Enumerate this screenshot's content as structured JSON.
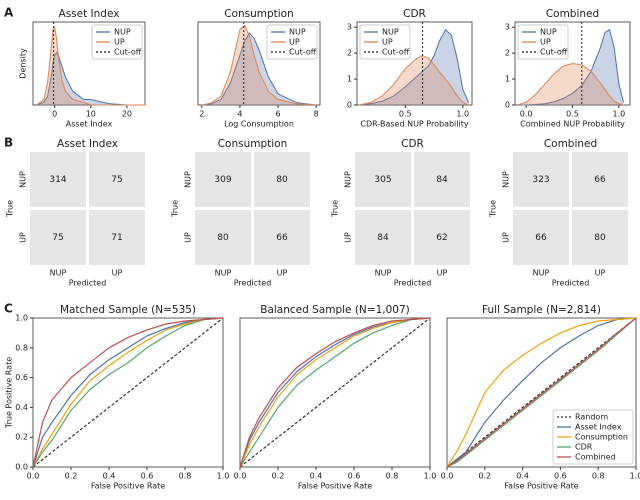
{
  "chart_data": [
    {
      "type": "density",
      "panel": "A",
      "title": "Asset Index",
      "xlabel": "Asset Index",
      "ylabel": "Density",
      "x": [
        -5,
        -3,
        -2,
        -1,
        -0.5,
        0,
        0.5,
        1,
        2,
        3,
        5,
        8,
        10,
        15,
        20,
        25
      ],
      "series": [
        {
          "name": "NUP",
          "color": "#4c72b0",
          "values": [
            0,
            0.01,
            0.03,
            0.1,
            0.15,
            0.18,
            0.19,
            0.18,
            0.14,
            0.1,
            0.05,
            0.02,
            0.02,
            0.005,
            0,
            0
          ]
        },
        {
          "name": "UP",
          "color": "#dd8452",
          "values": [
            0,
            0.02,
            0.08,
            0.2,
            0.27,
            0.28,
            0.24,
            0.18,
            0.09,
            0.05,
            0.02,
            0.01,
            0,
            0,
            0,
            0
          ]
        }
      ],
      "vline": {
        "name": "Cut-off",
        "x": -0.3
      },
      "xlim": [
        -6,
        25
      ],
      "xticks": [
        0,
        10,
        20
      ],
      "ylim": [
        0,
        0.3
      ],
      "legend": "upper right"
    },
    {
      "type": "density",
      "title": "Consumption",
      "xlabel": "Log Consumption",
      "x": [
        2,
        2.5,
        3,
        3.5,
        4,
        4.25,
        4.5,
        4.75,
        5,
        5.5,
        6,
        7,
        8
      ],
      "series": [
        {
          "name": "NUP",
          "color": "#4c72b0",
          "values": [
            0,
            0.01,
            0.05,
            0.2,
            0.45,
            0.58,
            0.65,
            0.6,
            0.5,
            0.25,
            0.1,
            0.02,
            0
          ]
        },
        {
          "name": "UP",
          "color": "#dd8452",
          "values": [
            0,
            0.02,
            0.08,
            0.3,
            0.68,
            0.72,
            0.62,
            0.45,
            0.3,
            0.12,
            0.05,
            0.01,
            0
          ]
        }
      ],
      "vline": {
        "name": "Cut-off",
        "x": 4.2
      },
      "xlim": [
        1.8,
        8.2
      ],
      "xticks": [
        2,
        4,
        6,
        8
      ],
      "ylim": [
        0,
        0.75
      ],
      "legend": "upper right"
    },
    {
      "type": "density",
      "title": "CDR",
      "xlabel": "CDR-Based NUP Probability",
      "x": [
        0.1,
        0.2,
        0.3,
        0.4,
        0.5,
        0.6,
        0.65,
        0.7,
        0.75,
        0.8,
        0.85,
        0.9,
        0.95,
        1.0,
        1.05
      ],
      "series": [
        {
          "name": "NUP",
          "color": "#4c72b0",
          "values": [
            0,
            0.05,
            0.15,
            0.35,
            0.7,
            1.1,
            1.3,
            1.5,
            1.9,
            2.5,
            2.9,
            2.7,
            1.8,
            0.6,
            0.1
          ]
        },
        {
          "name": "UP",
          "color": "#dd8452",
          "values": [
            0,
            0.1,
            0.35,
            0.8,
            1.4,
            1.8,
            1.9,
            1.8,
            1.55,
            1.25,
            1.0,
            0.7,
            0.35,
            0.1,
            0
          ]
        }
      ],
      "vline": {
        "name": "Cut-off",
        "x": 0.65
      },
      "xlim": [
        0.08,
        1.08
      ],
      "xticks": [
        {
          "value": 0.5,
          "label": "0.5"
        },
        {
          "value": 1,
          "label": "1.0"
        }
      ],
      "ylim": [
        0,
        3.2
      ],
      "yticks": [
        0,
        1,
        2,
        3
      ],
      "legend": "upper left"
    },
    {
      "type": "density",
      "title": "Combined",
      "xlabel": "Combined NUP Probability",
      "x": [
        -0.1,
        0,
        0.1,
        0.2,
        0.3,
        0.4,
        0.5,
        0.6,
        0.7,
        0.8,
        0.85,
        0.9,
        0.95,
        1.0,
        1.05
      ],
      "series": [
        {
          "name": "NUP",
          "color": "#4c72b0",
          "values": [
            0,
            0,
            0.02,
            0.05,
            0.12,
            0.25,
            0.45,
            0.75,
            1.3,
            2.2,
            2.8,
            2.9,
            2.2,
            0.8,
            0.1
          ]
        },
        {
          "name": "UP",
          "color": "#dd8452",
          "values": [
            0,
            0.1,
            0.4,
            0.8,
            1.2,
            1.5,
            1.6,
            1.55,
            1.3,
            0.85,
            0.6,
            0.35,
            0.15,
            0.05,
            0
          ]
        }
      ],
      "vline": {
        "name": "Cut-off",
        "x": 0.6
      },
      "xlim": [
        -0.12,
        1.12
      ],
      "xticks": [
        {
          "value": 0,
          "label": "0.0"
        },
        {
          "value": 0.5,
          "label": "0.5"
        },
        {
          "value": 1,
          "label": "1.0"
        }
      ],
      "ylim": [
        0,
        3.2
      ],
      "yticks": [
        0,
        1,
        2,
        3
      ],
      "legend": "upper left"
    },
    {
      "type": "confusion",
      "panel": "B",
      "title": "Asset Index",
      "categories": [
        "NUP",
        "UP"
      ],
      "xlabel": "Predicted",
      "ylabel": "True",
      "color": "#e5e5e5",
      "values": [
        [
          314,
          75
        ],
        [
          75,
          71
        ]
      ]
    },
    {
      "type": "confusion",
      "title": "Consumption",
      "categories": [
        "NUP",
        "UP"
      ],
      "xlabel": "Predicted",
      "ylabel": "True",
      "color": "#e5e5e5",
      "values": [
        [
          309,
          80
        ],
        [
          80,
          66
        ]
      ]
    },
    {
      "type": "confusion",
      "title": "CDR",
      "categories": [
        "NUP",
        "UP"
      ],
      "xlabel": "Predicted",
      "ylabel": "True",
      "color": "#e5e5e5",
      "values": [
        [
          305,
          84
        ],
        [
          84,
          62
        ]
      ]
    },
    {
      "type": "confusion",
      "title": "Combined",
      "categories": [
        "NUP",
        "UP"
      ],
      "xlabel": "Predicted",
      "ylabel": "True",
      "color": "#e5e5e5",
      "values": [
        [
          323,
          66
        ],
        [
          66,
          80
        ]
      ]
    },
    {
      "type": "line",
      "panel": "C",
      "title": "Matched Sample (N=535)",
      "xlabel": "False Positive Rate",
      "ylabel": "True Positive Rate",
      "x": [
        0,
        0.05,
        0.1,
        0.2,
        0.3,
        0.4,
        0.5,
        0.6,
        0.7,
        0.8,
        0.9,
        1
      ],
      "series": [
        {
          "color": "#333333",
          "dash": true,
          "values": [
            0,
            0.05,
            0.1,
            0.2,
            0.3,
            0.4,
            0.5,
            0.6,
            0.7,
            0.8,
            0.9,
            1
          ]
        },
        {
          "color": "#4c72b0",
          "values": [
            0,
            0.2,
            0.3,
            0.48,
            0.62,
            0.72,
            0.8,
            0.88,
            0.93,
            0.97,
            0.99,
            1
          ]
        },
        {
          "color": "#f0a30a",
          "values": [
            0,
            0.12,
            0.22,
            0.42,
            0.58,
            0.68,
            0.77,
            0.85,
            0.92,
            0.96,
            0.99,
            1
          ]
        },
        {
          "color": "#55a868",
          "values": [
            0,
            0.1,
            0.18,
            0.38,
            0.52,
            0.62,
            0.7,
            0.8,
            0.88,
            0.95,
            0.99,
            1
          ]
        },
        {
          "color": "#c44e52",
          "values": [
            0,
            0.3,
            0.45,
            0.6,
            0.7,
            0.8,
            0.87,
            0.92,
            0.96,
            0.98,
            0.99,
            1
          ]
        }
      ],
      "xlim": [
        0,
        1
      ],
      "ylim": [
        0,
        1
      ],
      "xticks": [
        {
          "value": 0,
          "label": "0.0"
        },
        {
          "value": 0.2,
          "label": "0.2"
        },
        {
          "value": 0.4,
          "label": "0.4"
        },
        {
          "value": 0.6,
          "label": "0.6"
        },
        {
          "value": 0.8,
          "label": "0.8"
        },
        {
          "value": 1,
          "label": "1.0"
        }
      ],
      "yticks": [
        {
          "value": 0,
          "label": "0.0"
        },
        {
          "value": 0.2,
          "label": "0.2"
        },
        {
          "value": 0.4,
          "label": "0.4"
        },
        {
          "value": 0.6,
          "label": "0.6"
        },
        {
          "value": 0.8,
          "label": "0.8"
        },
        {
          "value": 1,
          "label": "1.0"
        }
      ]
    },
    {
      "type": "line",
      "title": "Balanced Sample (N=1,007)",
      "xlabel": "False Positive Rate",
      "x": [
        0,
        0.05,
        0.1,
        0.2,
        0.3,
        0.4,
        0.5,
        0.6,
        0.7,
        0.8,
        0.9,
        1
      ],
      "series": [
        {
          "color": "#333333",
          "dash": true,
          "values": [
            0,
            0.05,
            0.1,
            0.2,
            0.3,
            0.4,
            0.5,
            0.6,
            0.7,
            0.8,
            0.9,
            1
          ]
        },
        {
          "color": "#4c72b0",
          "values": [
            0,
            0.18,
            0.3,
            0.5,
            0.64,
            0.74,
            0.82,
            0.89,
            0.94,
            0.97,
            0.99,
            1
          ]
        },
        {
          "color": "#f0a30a",
          "values": [
            0,
            0.15,
            0.27,
            0.47,
            0.62,
            0.72,
            0.8,
            0.88,
            0.93,
            0.97,
            0.99,
            1
          ]
        },
        {
          "color": "#55a868",
          "values": [
            0,
            0.1,
            0.2,
            0.4,
            0.55,
            0.65,
            0.74,
            0.83,
            0.9,
            0.95,
            0.99,
            1
          ]
        },
        {
          "color": "#c44e52",
          "values": [
            0,
            0.2,
            0.33,
            0.53,
            0.67,
            0.76,
            0.84,
            0.9,
            0.95,
            0.98,
            0.99,
            1
          ]
        }
      ],
      "xlim": [
        0,
        1
      ],
      "ylim": [
        0,
        1
      ],
      "xticks": [
        {
          "value": 0,
          "label": "0.0"
        },
        {
          "value": 0.2,
          "label": "0.2"
        },
        {
          "value": 0.4,
          "label": "0.4"
        },
        {
          "value": 0.6,
          "label": "0.6"
        },
        {
          "value": 0.8,
          "label": "0.8"
        },
        {
          "value": 1,
          "label": "1.0"
        }
      ]
    },
    {
      "type": "line",
      "title": "Full Sample (N=2,814)",
      "xlabel": "False Positive Rate",
      "x": [
        0,
        0.05,
        0.1,
        0.2,
        0.3,
        0.4,
        0.5,
        0.6,
        0.7,
        0.8,
        0.9,
        1
      ],
      "series": [
        {
          "name": "Random",
          "color": "#333333",
          "dash": true,
          "values": [
            0,
            0.05,
            0.1,
            0.2,
            0.3,
            0.4,
            0.5,
            0.6,
            0.7,
            0.8,
            0.9,
            1
          ]
        },
        {
          "name": "Asset Index",
          "color": "#4c72b0",
          "values": [
            0,
            0.05,
            0.1,
            0.3,
            0.45,
            0.58,
            0.7,
            0.8,
            0.88,
            0.95,
            0.99,
            1
          ]
        },
        {
          "name": "Consumption",
          "color": "#f0a30a",
          "values": [
            0,
            0.1,
            0.22,
            0.5,
            0.65,
            0.75,
            0.83,
            0.9,
            0.95,
            0.98,
            0.99,
            1
          ]
        },
        {
          "name": "CDR",
          "color": "#55a868",
          "values": [
            0,
            0.03,
            0.08,
            0.18,
            0.28,
            0.38,
            0.48,
            0.58,
            0.68,
            0.78,
            0.89,
            1
          ]
        },
        {
          "name": "Combined",
          "color": "#c44e52",
          "values": [
            0,
            0.04,
            0.09,
            0.19,
            0.29,
            0.39,
            0.49,
            0.59,
            0.69,
            0.79,
            0.9,
            1
          ]
        }
      ],
      "xlim": [
        0,
        1
      ],
      "ylim": [
        0,
        1
      ],
      "legend": "lower right",
      "xticks": [
        {
          "value": 0,
          "label": "0.0"
        },
        {
          "value": 0.2,
          "label": "0.2"
        },
        {
          "value": 0.4,
          "label": "0.4"
        },
        {
          "value": 0.6,
          "label": "0.6"
        },
        {
          "value": 0.8,
          "label": "0.8"
        },
        {
          "value": 1,
          "label": "1.0"
        }
      ]
    }
  ]
}
